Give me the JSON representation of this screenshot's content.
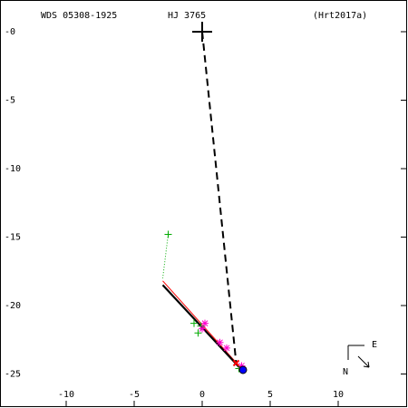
{
  "chart_data": {
    "type": "scatter",
    "title": "WDS 05308-1925",
    "subtitle": "HJ 3765",
    "reference": "(Hrt2017a)",
    "compass": {
      "east": "E",
      "north": "N"
    },
    "xlim": [
      -14.8,
      15.0
    ],
    "ylim": [
      -27.35,
      2.25
    ],
    "xticks": [
      -10,
      -5,
      0,
      5,
      10
    ],
    "yticks": [
      {
        "value": 0,
        "label": "-0"
      },
      -5,
      -10,
      -15,
      -20,
      -25
    ],
    "series": [
      {
        "style": "dashed-line",
        "color": "#000000",
        "x": [
          0,
          2.5
        ],
        "values": [
          0,
          -24.2
        ]
      },
      {
        "style": "line",
        "color": "#ff0000",
        "x": [
          -2.9,
          2.8
        ],
        "values": [
          -18.2,
          -24.5
        ]
      },
      {
        "style": "solid-line",
        "color": "#000000",
        "x": [
          -2.9,
          3.0
        ],
        "values": [
          -18.5,
          -24.8
        ]
      },
      {
        "style": "dotted-line",
        "color": "#00aa00",
        "x": [
          -2.5,
          -2.9
        ],
        "values": [
          -14.8,
          -18.0
        ]
      },
      {
        "style": "plus",
        "color": "#00aa00",
        "x": [
          -2.5,
          -0.6,
          -0.3,
          -0.1,
          2.7
        ],
        "values": [
          -14.8,
          -21.3,
          -22.0,
          -21.5,
          -24.6
        ]
      },
      {
        "style": "asterisk",
        "color": "#ff00cc",
        "x": [
          0.2,
          0.0,
          1.3,
          1.8,
          2.9
        ],
        "values": [
          -21.3,
          -21.7,
          -22.7,
          -23.1,
          -24.4
        ]
      },
      {
        "style": "cross",
        "color": "#ff0000",
        "x": [
          2.5
        ],
        "values": [
          -24.2
        ]
      },
      {
        "style": "circle",
        "color": "#0000ff",
        "x": [
          3.0
        ],
        "values": [
          -24.7
        ]
      },
      {
        "style": "big-plus",
        "color": "#000000",
        "x": [
          0
        ],
        "values": [
          0
        ]
      }
    ]
  }
}
